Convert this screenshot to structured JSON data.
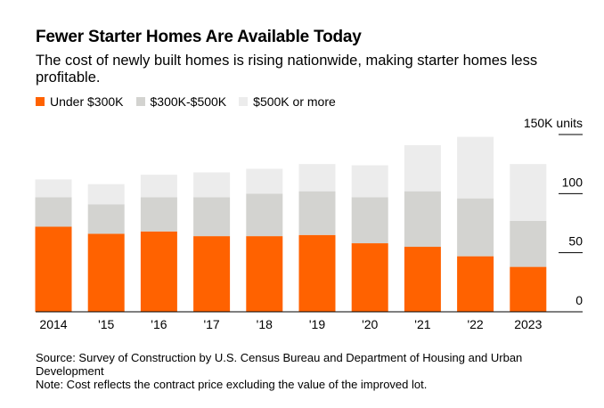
{
  "title": "Fewer Starter Homes Are Available Today",
  "subtitle": "The cost of newly built homes is rising nationwide, making starter homes less profitable.",
  "legend": [
    {
      "label": "Under $300K",
      "color": "#ff6200"
    },
    {
      "label": "$300K-$500K",
      "color": "#d3d3d0"
    },
    {
      "label": "$500K or more",
      "color": "#ececec"
    }
  ],
  "source": "Source: Survey of Construction by U.S. Census Bureau and Department of Housing and Urban Development",
  "note": "Note: Cost reflects the contract price excluding the value of the improved lot.",
  "chart_data": {
    "type": "bar",
    "stacked": true,
    "title": "Fewer Starter Homes Are Available Today",
    "categories": [
      "2014",
      "'15",
      "'16",
      "'17",
      "'18",
      "'19",
      "'20",
      "'21",
      "'22",
      "2023"
    ],
    "series": [
      {
        "name": "Under $300K",
        "color": "#ff6200",
        "values": [
          72,
          66,
          68,
          64,
          64,
          65,
          58,
          55,
          47,
          38
        ]
      },
      {
        "name": "$300K-$500K",
        "color": "#d3d3d0",
        "values": [
          25,
          25,
          29,
          33,
          36,
          37,
          39,
          47,
          49,
          39
        ]
      },
      {
        "name": "$500K or more",
        "color": "#ececec",
        "values": [
          15,
          17,
          19,
          21,
          21,
          23,
          27,
          39,
          52,
          48
        ]
      }
    ],
    "yticks": [
      0,
      50,
      100,
      150
    ],
    "ytick_labels": [
      "0",
      "50",
      "100",
      "150K units"
    ],
    "ylim": [
      0,
      150
    ],
    "xlabel": "",
    "ylabel": "",
    "legend_position": "top-left"
  }
}
